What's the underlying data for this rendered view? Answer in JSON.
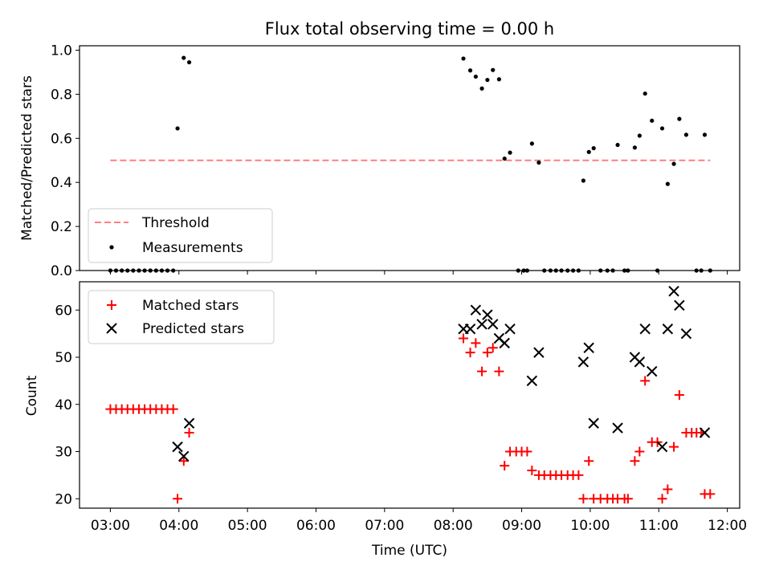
{
  "chart_data": [
    {
      "type": "scatter",
      "title": "Flux total observing time = 0.00 h",
      "xlabel": "",
      "ylabel": "Matched/Predicted stars",
      "x_unit": "hours UTC",
      "xlim": [
        2.55,
        12.18
      ],
      "ylim": [
        0,
        1.02
      ],
      "y_ticks": [
        "0.0",
        "0.2",
        "0.4",
        "0.6",
        "0.8",
        "1.0"
      ],
      "legend_position": "lower-left",
      "threshold": {
        "name": "Threshold",
        "value": 0.5,
        "x_range": [
          3.0,
          11.75
        ],
        "color": "#ff7f7f",
        "style": "dashed"
      },
      "series": [
        {
          "name": "Measurements",
          "color": "#000000",
          "marker": "dot",
          "points": [
            [
              3.0,
              0
            ],
            [
              3.083,
              0
            ],
            [
              3.167,
              0
            ],
            [
              3.25,
              0
            ],
            [
              3.333,
              0
            ],
            [
              3.417,
              0
            ],
            [
              3.5,
              0
            ],
            [
              3.583,
              0
            ],
            [
              3.667,
              0
            ],
            [
              3.75,
              0
            ],
            [
              3.833,
              0
            ],
            [
              3.917,
              0
            ],
            [
              3.98,
              0.645
            ],
            [
              4.07,
              0.965
            ],
            [
              4.15,
              0.945
            ],
            [
              8.15,
              0.962
            ],
            [
              8.25,
              0.908
            ],
            [
              8.33,
              0.88
            ],
            [
              8.42,
              0.826
            ],
            [
              8.5,
              0.865
            ],
            [
              8.58,
              0.91
            ],
            [
              8.67,
              0.868
            ],
            [
              8.75,
              0.508
            ],
            [
              8.83,
              0.535
            ],
            [
              8.95,
              0
            ],
            [
              9.03,
              0
            ],
            [
              9.08,
              0
            ],
            [
              9.15,
              0.576
            ],
            [
              9.25,
              0.49
            ],
            [
              9.33,
              0
            ],
            [
              9.42,
              0
            ],
            [
              9.5,
              0
            ],
            [
              9.58,
              0
            ],
            [
              9.67,
              0
            ],
            [
              9.75,
              0
            ],
            [
              9.83,
              0
            ],
            [
              9.9,
              0.408
            ],
            [
              9.98,
              0.538
            ],
            [
              10.05,
              0.555
            ],
            [
              10.15,
              0
            ],
            [
              10.25,
              0
            ],
            [
              10.33,
              0
            ],
            [
              10.4,
              0.57
            ],
            [
              10.5,
              0
            ],
            [
              10.55,
              0
            ],
            [
              10.65,
              0.558
            ],
            [
              10.72,
              0.612
            ],
            [
              10.8,
              0.803
            ],
            [
              10.9,
              0.68
            ],
            [
              10.98,
              0
            ],
            [
              11.05,
              0.645
            ],
            [
              11.13,
              0.393
            ],
            [
              11.22,
              0.484
            ],
            [
              11.3,
              0.688
            ],
            [
              11.4,
              0.616
            ],
            [
              11.55,
              0
            ],
            [
              11.62,
              0
            ],
            [
              11.67,
              0.616
            ],
            [
              11.75,
              0
            ]
          ]
        }
      ]
    },
    {
      "type": "scatter",
      "title": "",
      "xlabel": "Time (UTC)",
      "ylabel": "Count",
      "x_unit": "hours UTC",
      "xlim": [
        2.55,
        12.18
      ],
      "ylim": [
        18,
        66
      ],
      "x_ticks": [
        "03:00",
        "04:00",
        "05:00",
        "06:00",
        "07:00",
        "08:00",
        "09:00",
        "10:00",
        "11:00",
        "12:00"
      ],
      "x_tick_values": [
        3,
        4,
        5,
        6,
        7,
        8,
        9,
        10,
        11,
        12
      ],
      "y_ticks": [
        "20",
        "30",
        "40",
        "50",
        "60"
      ],
      "legend_position": "top-left",
      "series": [
        {
          "name": "Matched stars",
          "color": "#ff0000",
          "marker": "plus",
          "points": [
            [
              3.0,
              39
            ],
            [
              3.083,
              39
            ],
            [
              3.167,
              39
            ],
            [
              3.25,
              39
            ],
            [
              3.333,
              39
            ],
            [
              3.417,
              39
            ],
            [
              3.5,
              39
            ],
            [
              3.583,
              39
            ],
            [
              3.667,
              39
            ],
            [
              3.75,
              39
            ],
            [
              3.833,
              39
            ],
            [
              3.917,
              39
            ],
            [
              3.98,
              20
            ],
            [
              4.07,
              28
            ],
            [
              4.15,
              34
            ],
            [
              8.15,
              54
            ],
            [
              8.25,
              51
            ],
            [
              8.33,
              53
            ],
            [
              8.42,
              47
            ],
            [
              8.5,
              51
            ],
            [
              8.58,
              52
            ],
            [
              8.67,
              47
            ],
            [
              8.75,
              27
            ],
            [
              8.83,
              30
            ],
            [
              8.92,
              30
            ],
            [
              9.0,
              30
            ],
            [
              9.08,
              30
            ],
            [
              9.15,
              26
            ],
            [
              9.25,
              25
            ],
            [
              9.33,
              25
            ],
            [
              9.42,
              25
            ],
            [
              9.5,
              25
            ],
            [
              9.58,
              25
            ],
            [
              9.67,
              25
            ],
            [
              9.75,
              25
            ],
            [
              9.83,
              25
            ],
            [
              9.9,
              20
            ],
            [
              9.98,
              28
            ],
            [
              10.05,
              20
            ],
            [
              10.15,
              20
            ],
            [
              10.25,
              20
            ],
            [
              10.33,
              20
            ],
            [
              10.4,
              20
            ],
            [
              10.5,
              20
            ],
            [
              10.55,
              20
            ],
            [
              10.65,
              28
            ],
            [
              10.72,
              30
            ],
            [
              10.8,
              45
            ],
            [
              10.9,
              32
            ],
            [
              10.98,
              32
            ],
            [
              11.05,
              20
            ],
            [
              11.13,
              22
            ],
            [
              11.22,
              31
            ],
            [
              11.3,
              42
            ],
            [
              11.4,
              34
            ],
            [
              11.48,
              34
            ],
            [
              11.55,
              34
            ],
            [
              11.62,
              34
            ],
            [
              11.67,
              21
            ],
            [
              11.75,
              21
            ]
          ]
        },
        {
          "name": "Predicted stars",
          "color": "#000000",
          "marker": "x",
          "points": [
            [
              3.98,
              31
            ],
            [
              4.07,
              29
            ],
            [
              4.15,
              36
            ],
            [
              8.15,
              56
            ],
            [
              8.25,
              56
            ],
            [
              8.33,
              60
            ],
            [
              8.42,
              57
            ],
            [
              8.5,
              59
            ],
            [
              8.58,
              57
            ],
            [
              8.67,
              54
            ],
            [
              8.75,
              53
            ],
            [
              8.83,
              56
            ],
            [
              9.15,
              45
            ],
            [
              9.25,
              51
            ],
            [
              9.9,
              49
            ],
            [
              9.98,
              52
            ],
            [
              10.05,
              36
            ],
            [
              10.4,
              35
            ],
            [
              10.65,
              50
            ],
            [
              10.72,
              49
            ],
            [
              10.8,
              56
            ],
            [
              10.9,
              47
            ],
            [
              11.05,
              31
            ],
            [
              11.13,
              56
            ],
            [
              11.22,
              64
            ],
            [
              11.3,
              61
            ],
            [
              11.4,
              55
            ],
            [
              11.67,
              34
            ]
          ]
        }
      ]
    }
  ]
}
